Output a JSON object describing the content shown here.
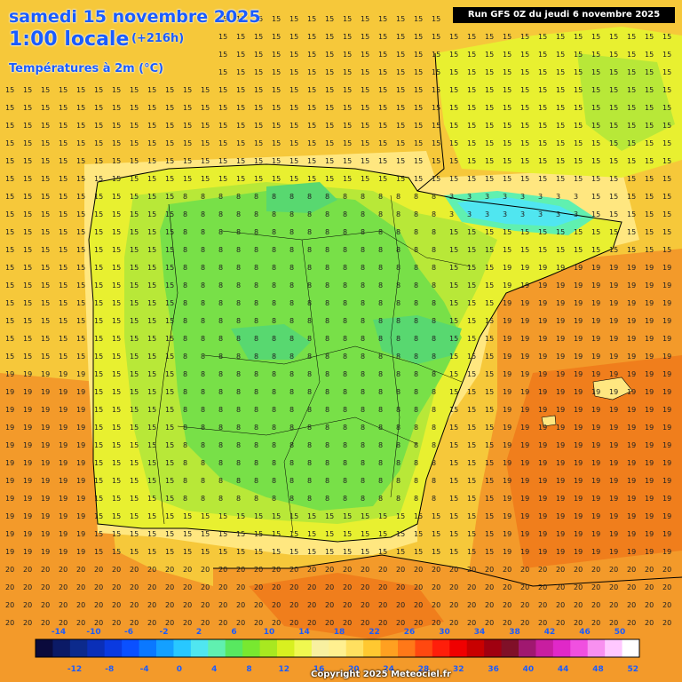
{
  "header": {
    "date": "samedi 15 novembre 2025",
    "time": "1:00 locale",
    "offset": "(+216h)",
    "parameter": "Températures à 2m (°C)",
    "run": "Run GFS 0Z du jeudi 6 novembre 2025"
  },
  "footer": {
    "copyright": "Copyright 2025 Meteociel.fr"
  },
  "legend": {
    "top_labels": [
      "-14",
      "-10",
      "-6",
      "-2",
      "2",
      "6",
      "10",
      "14",
      "18",
      "22",
      "26",
      "30",
      "34",
      "38",
      "42",
      "46",
      "50"
    ],
    "bottom_labels": [
      "-12",
      "-8",
      "-4",
      "0",
      "4",
      "8",
      "12",
      "16",
      "20",
      "24",
      "28",
      "32",
      "36",
      "40",
      "44",
      "48",
      "52"
    ],
    "colors": [
      "#0a0a3c",
      "#0b1a66",
      "#0c2a8c",
      "#0a2fb8",
      "#0a3ae0",
      "#0a50ff",
      "#0a78ff",
      "#14a0ff",
      "#28c8ff",
      "#50e6f0",
      "#60f0b0",
      "#58e860",
      "#78e830",
      "#a8e820",
      "#d8f020",
      "#f0f850",
      "#f8f0a0",
      "#fff090",
      "#ffe060",
      "#ffc830",
      "#ffa020",
      "#ff7818",
      "#ff4810",
      "#ff1e0a",
      "#f00000",
      "#c80000",
      "#a00010",
      "#801028",
      "#a01870",
      "#c81ea0",
      "#e028c8",
      "#f050e0",
      "#f890f0",
      "#ffc8ff",
      "#ffffff"
    ]
  },
  "sample_values": {
    "atlantic": "15",
    "north_plateau": "8",
    "pyrenees": "3",
    "mediterranean": "19",
    "south_sea": "19",
    "africa": "20"
  }
}
